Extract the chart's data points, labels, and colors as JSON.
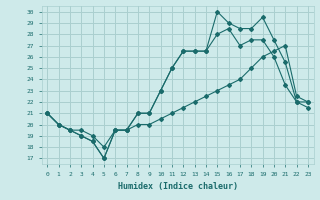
{
  "xlabel": "Humidex (Indice chaleur)",
  "background_color": "#ceeaea",
  "grid_color": "#aacfcf",
  "line_color": "#1a6b6b",
  "xlim": [
    -0.5,
    23.5
  ],
  "ylim": [
    16.5,
    30.5
  ],
  "xticks": [
    0,
    1,
    2,
    3,
    4,
    5,
    6,
    7,
    8,
    9,
    10,
    11,
    12,
    13,
    14,
    15,
    16,
    17,
    18,
    19,
    20,
    21,
    22,
    23
  ],
  "yticks": [
    17,
    18,
    19,
    20,
    21,
    22,
    23,
    24,
    25,
    26,
    27,
    28,
    29,
    30
  ],
  "line1_x": [
    0,
    1,
    2,
    3,
    4,
    5,
    6,
    7,
    8,
    9,
    10,
    11,
    12,
    13,
    14,
    15,
    16,
    17,
    18,
    19,
    20,
    21,
    22,
    23
  ],
  "line1_y": [
    21,
    20,
    19.5,
    19,
    18.5,
    17,
    19.5,
    19.5,
    21,
    21,
    23,
    25,
    26.5,
    26.5,
    26.5,
    30,
    29,
    28.5,
    28.5,
    29.5,
    27.5,
    25.5,
    22,
    21.5
  ],
  "line2_x": [
    0,
    1,
    2,
    3,
    4,
    5,
    6,
    7,
    8,
    9,
    10,
    11,
    12,
    13,
    14,
    15,
    16,
    17,
    18,
    19,
    20,
    21,
    22,
    23
  ],
  "line2_y": [
    21,
    20,
    19.5,
    19,
    18.5,
    17,
    19.5,
    19.5,
    21,
    21,
    23,
    25,
    26.5,
    26.5,
    26.5,
    28,
    28.5,
    27,
    27.5,
    27.5,
    26,
    23.5,
    22,
    22
  ],
  "line3_x": [
    0,
    1,
    2,
    3,
    4,
    5,
    6,
    7,
    8,
    9,
    10,
    11,
    12,
    13,
    14,
    15,
    16,
    17,
    18,
    19,
    20,
    21,
    22,
    23
  ],
  "line3_y": [
    21,
    20,
    19.5,
    19.5,
    19,
    18,
    19.5,
    19.5,
    20,
    20,
    20.5,
    21,
    21.5,
    22,
    22.5,
    23,
    23.5,
    24,
    25,
    26,
    26.5,
    27,
    22.5,
    22
  ]
}
